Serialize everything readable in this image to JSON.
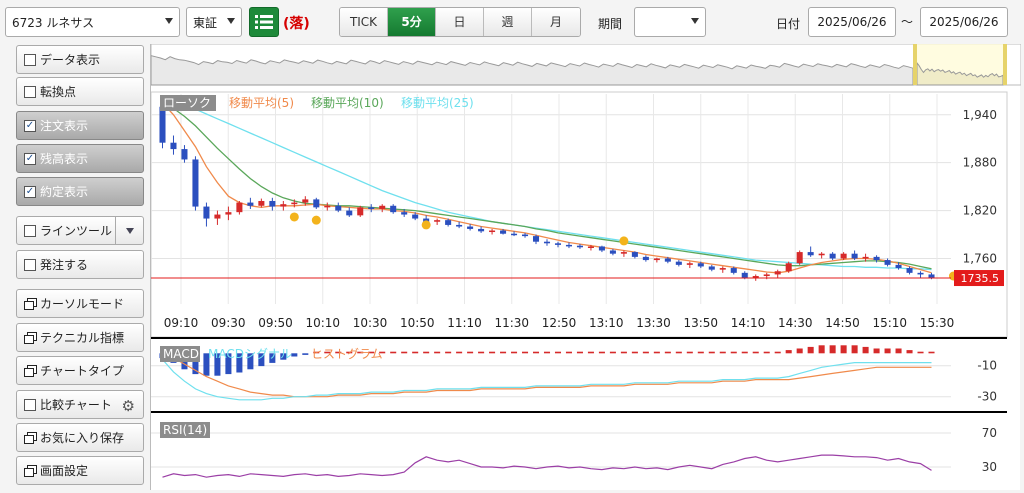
{
  "toolbar": {
    "symbol": "6723 ルネサス",
    "exchange": "東証",
    "list_icon": "list-icon",
    "status": "(落)",
    "intervals": [
      "TICK",
      "5分",
      "日",
      "週",
      "月"
    ],
    "active_interval": "5分",
    "period_label": "期間",
    "period_value": "",
    "date_label": "日付",
    "date_from": "2025/06/26",
    "tilde": "〜",
    "date_to": "2025/06/26"
  },
  "sidebar": {
    "items": [
      {
        "label": "データ表示",
        "kind": "check",
        "checked": false
      },
      {
        "label": "転換点",
        "kind": "check",
        "checked": false
      },
      {
        "label": "注文表示",
        "kind": "check",
        "checked": true
      },
      {
        "label": "残高表示",
        "kind": "check",
        "checked": true
      },
      {
        "label": "約定表示",
        "kind": "check",
        "checked": true
      },
      {
        "label": "ラインツール",
        "kind": "check-drop",
        "checked": false
      },
      {
        "label": "発注する",
        "kind": "check",
        "checked": false
      },
      {
        "label": "カーソルモード",
        "kind": "window"
      },
      {
        "label": "テクニカル指標",
        "kind": "window"
      },
      {
        "label": "チャートタイプ",
        "kind": "window"
      },
      {
        "label": "比較チャート",
        "kind": "check-gear",
        "checked": false
      },
      {
        "label": "お気に入り保存",
        "kind": "window"
      },
      {
        "label": "画面設定",
        "kind": "window"
      }
    ]
  },
  "chart_data": {
    "type": "candlestick",
    "interval": "5分",
    "legend": [
      "ローソク",
      "移動平均(5)",
      "移動平均(10)",
      "移動平均(25)"
    ],
    "colors": {
      "up": "#d62a2a",
      "down": "#2b4fbf",
      "ma5": "#f08a4b",
      "ma10": "#5aa75a",
      "ma25": "#6fe0ee",
      "current": "#e31b1b",
      "order_marker": "#f3b31c"
    },
    "yticks": [
      1940,
      1880,
      1820,
      1760
    ],
    "ylim": [
      1718,
      1966
    ],
    "current_price": "1735.5",
    "xticks": [
      "09:10",
      "09:30",
      "09:50",
      "10:10",
      "10:30",
      "10:50",
      "11:10",
      "11:30",
      "12:50",
      "13:10",
      "13:30",
      "13:50",
      "14:10",
      "14:30",
      "14:50",
      "15:10",
      "15:30"
    ],
    "ohlc": [
      [
        1950,
        1950,
        1898,
        1905
      ],
      [
        1905,
        1914,
        1890,
        1897
      ],
      [
        1897,
        1902,
        1880,
        1884
      ],
      [
        1884,
        1888,
        1820,
        1825
      ],
      [
        1825,
        1830,
        1800,
        1810
      ],
      [
        1810,
        1820,
        1802,
        1815
      ],
      [
        1815,
        1825,
        1808,
        1818
      ],
      [
        1818,
        1832,
        1815,
        1830
      ],
      [
        1830,
        1836,
        1822,
        1826
      ],
      [
        1826,
        1835,
        1824,
        1832
      ],
      [
        1832,
        1836,
        1820,
        1825
      ],
      [
        1825,
        1832,
        1820,
        1828
      ],
      [
        1828,
        1834,
        1824,
        1830
      ],
      [
        1830,
        1838,
        1826,
        1834
      ],
      [
        1834,
        1836,
        1822,
        1824
      ],
      [
        1824,
        1830,
        1820,
        1826
      ],
      [
        1826,
        1830,
        1818,
        1820
      ],
      [
        1820,
        1824,
        1812,
        1814
      ],
      [
        1814,
        1826,
        1812,
        1824
      ],
      [
        1824,
        1828,
        1818,
        1822
      ],
      [
        1822,
        1828,
        1818,
        1826
      ],
      [
        1826,
        1828,
        1816,
        1818
      ],
      [
        1818,
        1822,
        1812,
        1815
      ],
      [
        1815,
        1818,
        1808,
        1810
      ],
      [
        1810,
        1814,
        1804,
        1806
      ],
      [
        1806,
        1810,
        1802,
        1808
      ],
      [
        1808,
        1810,
        1800,
        1802
      ],
      [
        1802,
        1806,
        1798,
        1800
      ],
      [
        1800,
        1803,
        1795,
        1797
      ],
      [
        1797,
        1800,
        1792,
        1794
      ],
      [
        1794,
        1797,
        1790,
        1795
      ],
      [
        1795,
        1797,
        1790,
        1791
      ],
      [
        1791,
        1794,
        1788,
        1790
      ],
      [
        1790,
        1792,
        1786,
        1788
      ],
      [
        1788,
        1790,
        1778,
        1781
      ],
      [
        1781,
        1784,
        1776,
        1779
      ],
      [
        1779,
        1781,
        1774,
        1777
      ],
      [
        1777,
        1780,
        1773,
        1776
      ],
      [
        1776,
        1778,
        1772,
        1774
      ],
      [
        1774,
        1777,
        1770,
        1775
      ],
      [
        1775,
        1776,
        1768,
        1770
      ],
      [
        1770,
        1772,
        1764,
        1766
      ],
      [
        1766,
        1770,
        1762,
        1768
      ],
      [
        1768,
        1769,
        1760,
        1762
      ],
      [
        1762,
        1764,
        1756,
        1758
      ],
      [
        1758,
        1761,
        1755,
        1760
      ],
      [
        1760,
        1762,
        1754,
        1756
      ],
      [
        1756,
        1758,
        1750,
        1752
      ],
      [
        1752,
        1756,
        1748,
        1754
      ],
      [
        1754,
        1756,
        1748,
        1750
      ],
      [
        1750,
        1752,
        1744,
        1746
      ],
      [
        1746,
        1750,
        1742,
        1748
      ],
      [
        1748,
        1750,
        1740,
        1742
      ],
      [
        1742,
        1744,
        1734,
        1736
      ],
      [
        1736,
        1740,
        1732,
        1738
      ],
      [
        1738,
        1742,
        1734,
        1740
      ],
      [
        1740,
        1746,
        1736,
        1744
      ],
      [
        1744,
        1756,
        1742,
        1754
      ],
      [
        1754,
        1770,
        1752,
        1768
      ],
      [
        1768,
        1775,
        1762,
        1764
      ],
      [
        1764,
        1768,
        1760,
        1766
      ],
      [
        1766,
        1768,
        1758,
        1760
      ],
      [
        1760,
        1768,
        1758,
        1766
      ],
      [
        1766,
        1770,
        1758,
        1760
      ],
      [
        1760,
        1766,
        1756,
        1762
      ],
      [
        1762,
        1764,
        1755,
        1758
      ],
      [
        1758,
        1760,
        1750,
        1752
      ],
      [
        1752,
        1755,
        1746,
        1748
      ],
      [
        1748,
        1750,
        1740,
        1742
      ],
      [
        1742,
        1744,
        1736,
        1740
      ],
      [
        1740,
        1742,
        1734,
        1736
      ]
    ],
    "ma5": [
      1955,
      1940,
      1920,
      1900,
      1875,
      1855,
      1838,
      1830,
      1826,
      1824,
      1826,
      1826,
      1826,
      1827,
      1828,
      1826,
      1825,
      1824,
      1823,
      1822,
      1822,
      1820,
      1819,
      1817,
      1814,
      1812,
      1809,
      1806,
      1803,
      1800,
      1798,
      1796,
      1794,
      1792,
      1789,
      1786,
      1783,
      1780,
      1778,
      1776,
      1774,
      1772,
      1770,
      1768,
      1765,
      1763,
      1761,
      1759,
      1757,
      1755,
      1753,
      1751,
      1749,
      1747,
      1745,
      1743,
      1742,
      1744,
      1748,
      1752,
      1755,
      1757,
      1759,
      1760,
      1760,
      1759,
      1757,
      1754,
      1750,
      1746,
      1742
    ],
    "ma10": [
      1956,
      1948,
      1938,
      1926,
      1912,
      1898,
      1885,
      1872,
      1860,
      1850,
      1842,
      1836,
      1832,
      1829,
      1828,
      1827,
      1826,
      1826,
      1825,
      1824,
      1823,
      1822,
      1821,
      1820,
      1818,
      1816,
      1814,
      1812,
      1810,
      1808,
      1806,
      1804,
      1802,
      1800,
      1797,
      1795,
      1792,
      1790,
      1788,
      1786,
      1784,
      1782,
      1780,
      1778,
      1776,
      1774,
      1772,
      1770,
      1768,
      1766,
      1764,
      1762,
      1760,
      1758,
      1756,
      1754,
      1752,
      1751,
      1751,
      1752,
      1753,
      1754,
      1755,
      1756,
      1757,
      1757,
      1756,
      1755,
      1753,
      1750,
      1747
    ],
    "ma25": [
      1962,
      1958,
      1953,
      1947,
      1941,
      1935,
      1929,
      1923,
      1917,
      1911,
      1905,
      1899,
      1893,
      1887,
      1881,
      1875,
      1869,
      1863,
      1857,
      1851,
      1845,
      1840,
      1835,
      1830,
      1826,
      1822,
      1818,
      1815,
      1812,
      1809,
      1806,
      1804,
      1802,
      1800,
      1798,
      1796,
      1794,
      1792,
      1790,
      1788,
      1786,
      1784,
      1782,
      1780,
      1778,
      1776,
      1774,
      1772,
      1770,
      1768,
      1766,
      1764,
      1762,
      1760,
      1758,
      1757,
      1756,
      1755,
      1754,
      1753,
      1752,
      1751,
      1750,
      1750,
      1749,
      1749,
      1748,
      1748,
      1747,
      1747,
      1746
    ],
    "order_markers": [
      [
        12,
        "1812"
      ],
      [
        14,
        "1808"
      ],
      [
        24,
        "1802"
      ],
      [
        42,
        "1782"
      ],
      [
        72,
        "1738"
      ]
    ],
    "macd": {
      "legend": [
        "MACD",
        "MACDシグナル",
        "ヒストグラム"
      ],
      "yticks": [
        -10,
        -30
      ],
      "ylim": [
        -36,
        4
      ],
      "macd": [
        -6,
        -14,
        -20,
        -25,
        -28,
        -30,
        -31,
        -32,
        -32,
        -32,
        -31,
        -31,
        -30,
        -30,
        -29,
        -29,
        -28,
        -28,
        -28,
        -27,
        -27,
        -27,
        -26,
        -26,
        -26,
        -25,
        -25,
        -25,
        -25,
        -24,
        -24,
        -24,
        -24,
        -24,
        -23,
        -23,
        -23,
        -23,
        -23,
        -22,
        -22,
        -22,
        -22,
        -21,
        -21,
        -21,
        -21,
        -20,
        -20,
        -20,
        -20,
        -19,
        -19,
        -19,
        -18,
        -18,
        -18,
        -17,
        -15,
        -13,
        -11,
        -10,
        -9,
        -8,
        -8,
        -8,
        -8,
        -8,
        -8,
        -8,
        -8
      ],
      "signal": [
        -2,
        -5,
        -9,
        -13,
        -17,
        -20,
        -23,
        -25,
        -27,
        -28,
        -29,
        -29,
        -30,
        -30,
        -30,
        -30,
        -29,
        -29,
        -29,
        -28,
        -28,
        -28,
        -27,
        -27,
        -27,
        -26,
        -26,
        -26,
        -26,
        -25,
        -25,
        -25,
        -25,
        -25,
        -24,
        -24,
        -24,
        -24,
        -24,
        -23,
        -23,
        -23,
        -23,
        -22,
        -22,
        -22,
        -22,
        -21,
        -21,
        -21,
        -21,
        -20,
        -20,
        -20,
        -19,
        -19,
        -19,
        -19,
        -18,
        -17,
        -16,
        -15,
        -14,
        -13,
        -12,
        -11,
        -11,
        -11,
        -11,
        -11,
        -11
      ],
      "hist": [
        -3,
        -6,
        -10,
        -13,
        -14,
        -14,
        -13,
        -12,
        -10,
        -8,
        -6,
        -4,
        -2,
        -1,
        1,
        1,
        1,
        1,
        1,
        1,
        1,
        1,
        1,
        1,
        1,
        1,
        1,
        1,
        1,
        1,
        1,
        1,
        1,
        1,
        1,
        1,
        1,
        1,
        1,
        1,
        1,
        1,
        1,
        1,
        1,
        1,
        1,
        1,
        1,
        1,
        1,
        1,
        1,
        1,
        1,
        1,
        1,
        2,
        3,
        4,
        5,
        5,
        5,
        5,
        4,
        3,
        3,
        3,
        2,
        1,
        1
      ]
    },
    "rsi": {
      "legend": [
        "RSI(14)"
      ],
      "yticks": [
        70,
        30
      ],
      "ylim": [
        10,
        90
      ],
      "values": [
        18,
        22,
        20,
        21,
        18,
        20,
        21,
        19,
        22,
        21,
        20,
        19,
        21,
        22,
        20,
        21,
        19,
        20,
        22,
        21,
        20,
        21,
        24,
        35,
        42,
        38,
        36,
        38,
        34,
        30,
        30,
        29,
        31,
        30,
        28,
        30,
        31,
        29,
        30,
        28,
        27,
        29,
        28,
        30,
        28,
        29,
        27,
        30,
        32,
        30,
        28,
        33,
        36,
        40,
        42,
        38,
        36,
        38,
        40,
        42,
        44,
        44,
        43,
        42,
        42,
        41,
        38,
        40,
        36,
        34,
        26
      ]
    }
  }
}
